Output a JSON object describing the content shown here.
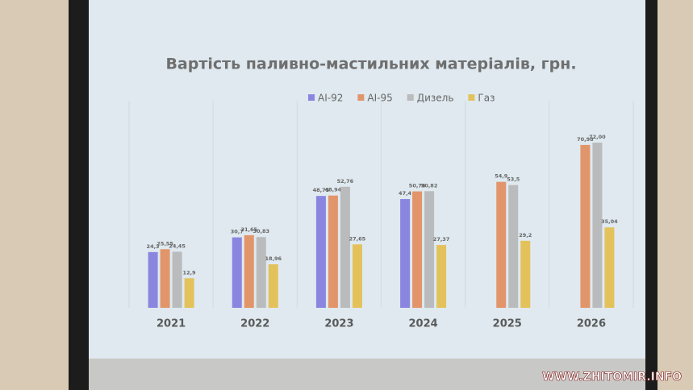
{
  "chart_data": {
    "type": "bar",
    "title": "Вартість паливно-мастильних матеріалів, грн.",
    "categories": [
      "2021",
      "2022",
      "2023",
      "2024",
      "2025",
      "2026"
    ],
    "series": [
      {
        "name": "AI-92",
        "color": "#8a86e0",
        "values": [
          24.3,
          30.7,
          48.75,
          47.4,
          null,
          null
        ],
        "value_labels": [
          "24,3",
          "30,7",
          "48,75",
          "47,4",
          null,
          null
        ]
      },
      {
        "name": "AI-95",
        "color": "#e2956b",
        "values": [
          25.55,
          31.65,
          48.94,
          50.74,
          54.9,
          70.98
        ],
        "value_labels": [
          "25,55",
          "31,65",
          "48,94",
          "50,74",
          "54,9",
          "70,98"
        ]
      },
      {
        "name": "Дизель",
        "color": "#b9bbbd",
        "values": [
          24.45,
          30.83,
          52.76,
          50.82,
          53.5,
          72.0
        ],
        "value_labels": [
          "24,45",
          "30,83",
          "52,76",
          "50,82",
          "53,5",
          "72,00"
        ]
      },
      {
        "name": "Газ",
        "color": "#e3c25c",
        "values": [
          12.9,
          18.96,
          27.65,
          27.37,
          29.2,
          35.04
        ],
        "value_labels": [
          "12,9",
          "18,96",
          "27,65",
          "27,37",
          "29,2",
          "35,04"
        ]
      }
    ],
    "legend": "top"
  },
  "watermark": "WWW.ZHITOMIR.INFO"
}
